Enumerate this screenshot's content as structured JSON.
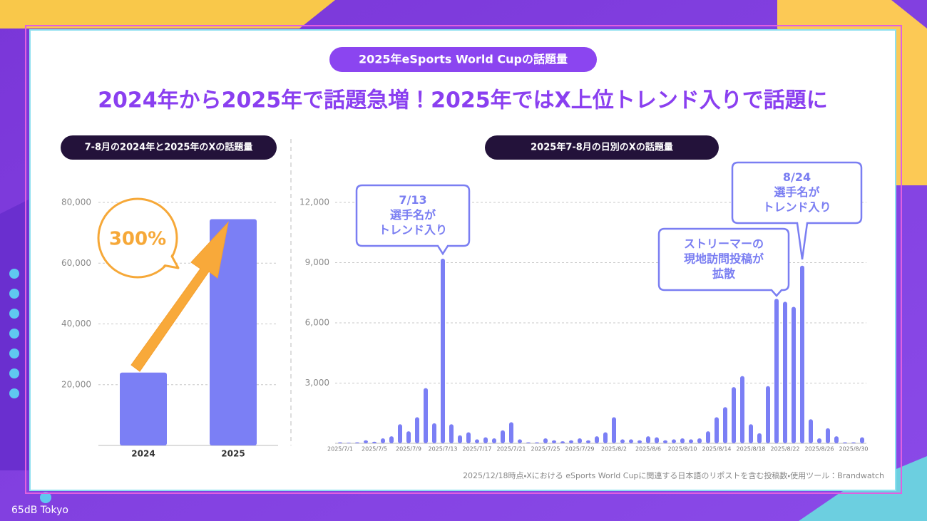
{
  "header": {
    "badge": "2025年eSports World Cupの話題量",
    "title": "2024年から2025年で話題急増！2025年ではX上位トレンド入りで話題に"
  },
  "chart_data": [
    {
      "type": "bar",
      "title": "7-8月の2024年と2025年のXの話題量",
      "categories": [
        "2024",
        "2025"
      ],
      "values": [
        24000,
        74500
      ],
      "color": "#7b7ff5",
      "ylim": [
        0,
        80000
      ],
      "yticks": [
        {
          "value": 20000,
          "label": "20,000"
        },
        {
          "value": 40000,
          "label": "40,000"
        },
        {
          "value": 60000,
          "label": "60,000"
        },
        {
          "value": 80000,
          "label": "80,000"
        }
      ],
      "grid": true,
      "annotation": "300%"
    },
    {
      "type": "bar",
      "title": "2025年7-8月の日別のXの話題量",
      "categories": [
        "2025/7/1",
        null,
        null,
        null,
        "2025/7/5",
        null,
        null,
        null,
        "2025/7/9",
        null,
        null,
        null,
        "2025/7/13",
        null,
        null,
        null,
        "2025/7/17",
        null,
        null,
        null,
        "2025/7/21",
        null,
        null,
        null,
        "2025/7/25",
        null,
        null,
        null,
        "2025/7/29",
        null,
        null,
        null,
        "2025/8/2",
        null,
        null,
        null,
        "2025/8/6",
        null,
        null,
        null,
        "2025/8/10",
        null,
        null,
        null,
        "2025/8/14",
        null,
        null,
        null,
        "2025/8/18",
        null,
        null,
        null,
        "2025/8/22",
        null,
        null,
        null,
        "2025/8/26",
        null,
        null,
        null,
        "2025/8/30",
        null
      ],
      "values": [
        50,
        30,
        50,
        150,
        80,
        250,
        350,
        950,
        600,
        1300,
        2750,
        1000,
        9200,
        950,
        400,
        550,
        200,
        300,
        250,
        650,
        1050,
        200,
        50,
        50,
        250,
        150,
        100,
        150,
        250,
        150,
        350,
        550,
        1300,
        200,
        200,
        150,
        350,
        300,
        150,
        200,
        250,
        200,
        250,
        600,
        1300,
        1800,
        2800,
        3350,
        950,
        500,
        2850,
        7200,
        7050,
        6800,
        8850,
        1200,
        250,
        750,
        350,
        50,
        50,
        300
      ],
      "color": "#7b7ff5",
      "ylim": [
        0,
        12000
      ],
      "yticks": [
        {
          "value": 3000,
          "label": "3,000"
        },
        {
          "value": 6000,
          "label": "6,000"
        },
        {
          "value": 9000,
          "label": "9,000"
        },
        {
          "value": 12000,
          "label": "12,000"
        }
      ],
      "grid": true,
      "annotations": [
        {
          "lines": [
            "7/13",
            "選手名が",
            "トレンド入り"
          ]
        },
        {
          "lines": [
            "ストリーマーの",
            "現地訪問投稿が",
            "拡散"
          ]
        },
        {
          "lines": [
            "8/24",
            "選手名が",
            "トレンド入り"
          ]
        }
      ]
    }
  ],
  "footnote": "2025/12/18時点・Xにおける eSports World Cupに関連する日本語のリポストを含む投稿数・使用ツール：Brandwatch",
  "brand": "65dB Tokyo"
}
